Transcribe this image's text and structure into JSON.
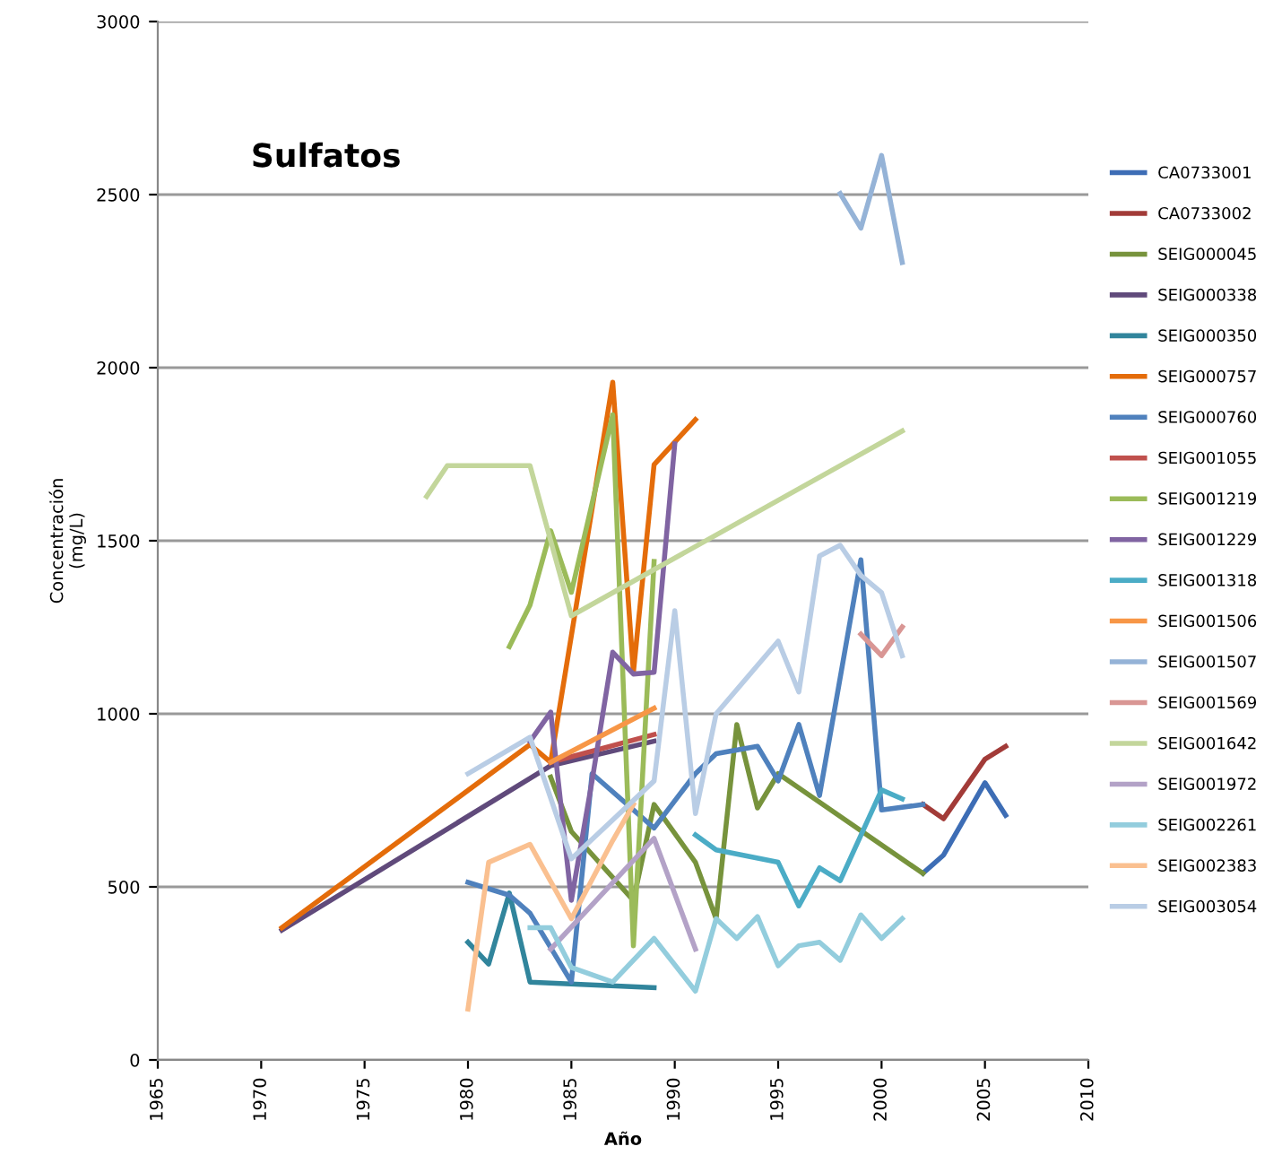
{
  "chart_data": {
    "type": "line",
    "title": "Sulfatos",
    "xlabel": "Año",
    "ylabel": "Concentración\n(mg/L)",
    "xlim": [
      1965,
      2010
    ],
    "xticks": [
      1965,
      1970,
      1975,
      1980,
      1985,
      1990,
      1995,
      2000,
      2005,
      2010
    ],
    "ylim": [
      0,
      3000
    ],
    "yticks": [
      0,
      500,
      1000,
      1500,
      2000,
      2500,
      3000
    ],
    "grid": "y",
    "legend": "right",
    "marker": "none",
    "line_style": "solid",
    "series": [
      {
        "name": "CA0733001",
        "color": "#3d6db5",
        "x": [
          2002,
          2003,
          2005,
          2006
        ],
        "values": [
          539,
          592,
          801,
          707
        ]
      },
      {
        "name": "CA0733002",
        "color": "#a23b38",
        "x": [
          2002,
          2003,
          2005,
          2006
        ],
        "values": [
          738,
          697,
          869,
          906
        ]
      },
      {
        "name": "SEIG000045",
        "color": "#77933c",
        "x": [
          1984,
          1985,
          1988,
          1989,
          1991,
          1992,
          1993,
          1994,
          1995,
          2002
        ],
        "values": [
          817,
          660,
          461,
          738,
          571,
          408,
          969,
          728,
          827,
          539
        ]
      },
      {
        "name": "SEIG000338",
        "color": "#604a7b",
        "x": [
          1971,
          1984,
          1989
        ],
        "values": [
          375,
          850,
          921
        ]
      },
      {
        "name": "SEIG000350",
        "color": "#31859c",
        "x": [
          1980,
          1981,
          1982,
          1983,
          1989
        ],
        "values": [
          340,
          277,
          482,
          225,
          209
        ]
      },
      {
        "name": "SEIG000757",
        "color": "#e46c0a",
        "x": [
          1971,
          1983,
          1984,
          1987,
          1988,
          1989,
          1991
        ],
        "values": [
          382,
          911,
          860,
          1958,
          1120,
          1720,
          1850
        ]
      },
      {
        "name": "SEIG000760",
        "color": "#4f81bd",
        "x": [
          1980,
          1982,
          1983,
          1985,
          1986,
          1989,
          1991,
          1992,
          1994,
          1995,
          1996,
          1997,
          1999,
          2000,
          2002
        ],
        "values": [
          513,
          476,
          424,
          225,
          827,
          670,
          827,
          885,
          906,
          806,
          969,
          764,
          1445,
          722,
          738
        ]
      },
      {
        "name": "SEIG001055",
        "color": "#c0504d",
        "x": [
          1984,
          1989
        ],
        "values": [
          860,
          940
        ]
      },
      {
        "name": "SEIG001219",
        "color": "#9bbb59",
        "x": [
          1982,
          1983,
          1984,
          1985,
          1987,
          1988,
          1989
        ],
        "values": [
          1194,
          1314,
          1529,
          1351,
          1864,
          330,
          1440
        ]
      },
      {
        "name": "SEIG001229",
        "color": "#8064a2",
        "x": [
          1983,
          1984,
          1985,
          1986,
          1987,
          1988,
          1989,
          1990
        ],
        "values": [
          920,
          1005,
          461,
          806,
          1178,
          1115,
          1120,
          1780
        ]
      },
      {
        "name": "SEIG001318",
        "color": "#4bacc6",
        "x": [
          1991,
          1992,
          1995,
          1996,
          1997,
          1998,
          2000,
          2001
        ],
        "values": [
          650,
          607,
          571,
          445,
          555,
          518,
          780,
          754
        ]
      },
      {
        "name": "SEIG001506",
        "color": "#f79646",
        "x": [
          1984,
          1989
        ],
        "values": [
          860,
          1016
        ]
      },
      {
        "name": "SEIG001507",
        "color": "#95b3d7",
        "x": [
          1998,
          1999,
          2000,
          2001
        ],
        "values": [
          2503,
          2403,
          2613,
          2304
        ]
      },
      {
        "name": "SEIG001569",
        "color": "#d99694",
        "x": [
          1999,
          2000,
          2001
        ],
        "values": [
          1230,
          1168,
          1251
        ]
      },
      {
        "name": "SEIG001642",
        "color": "#c3d69b",
        "x": [
          1978,
          1979,
          1983,
          1985,
          2001
        ],
        "values": [
          1628,
          1717,
          1717,
          1283,
          1817
        ]
      },
      {
        "name": "SEIG001972",
        "color": "#b3a2c7",
        "x": [
          1984,
          1989,
          1991
        ],
        "values": [
          320,
          640,
          320
        ]
      },
      {
        "name": "SEIG002261",
        "color": "#93cddd",
        "x": [
          1983,
          1984,
          1985,
          1987,
          1989,
          1991,
          1992,
          1993,
          1994,
          1995,
          1996,
          1997,
          1998,
          1999,
          2000,
          2001
        ],
        "values": [
          382,
          382,
          267,
          225,
          351,
          199,
          408,
          351,
          414,
          272,
          330,
          340,
          288,
          419,
          351,
          408
        ]
      },
      {
        "name": "SEIG002383",
        "color": "#fac090",
        "x": [
          1980,
          1981,
          1983,
          1985,
          1987,
          1988
        ],
        "values": [
          147,
          571,
          623,
          408,
          634,
          738
        ]
      },
      {
        "name": "SEIG003054",
        "color": "#b9cde5",
        "x": [
          1980,
          1983,
          1985,
          1989,
          1990,
          1991,
          1992,
          1995,
          1996,
          1997,
          1998,
          1999,
          2000,
          2001
        ],
        "values": [
          827,
          932,
          581,
          806,
          1298,
          712,
          1000,
          1210,
          1063,
          1456,
          1487,
          1400,
          1350,
          1168
        ]
      }
    ]
  }
}
